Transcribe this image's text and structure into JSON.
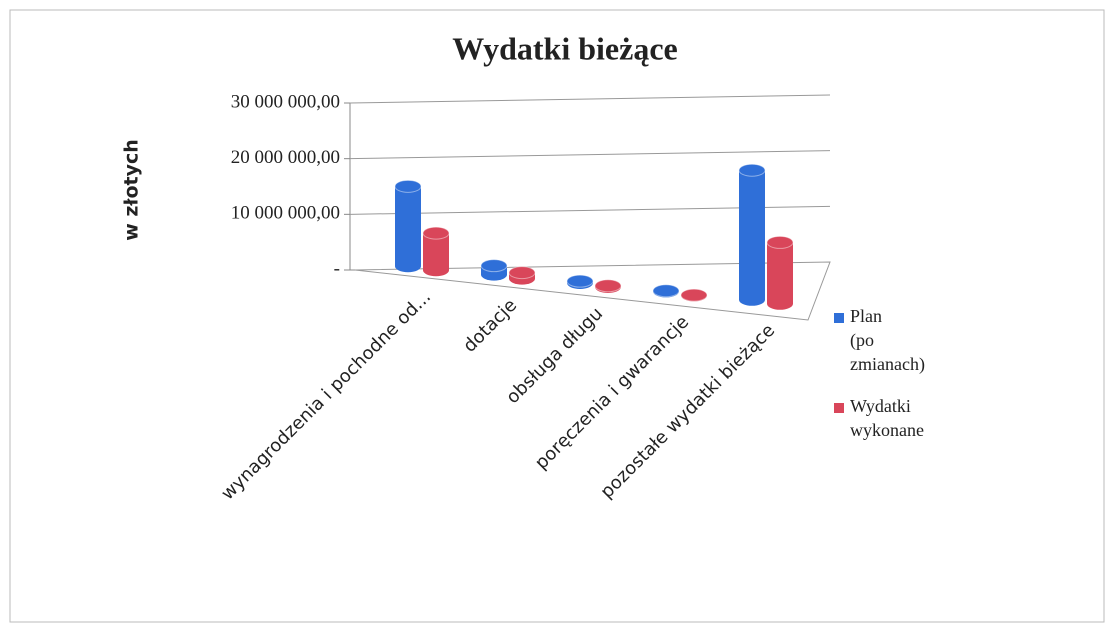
{
  "chart_data": {
    "type": "bar3d",
    "title": "Wydatki bieżące",
    "y_label": "w złotych",
    "categories": [
      "wynagrodzenia i pochodne od...",
      "dotacje",
      "obsługa długu",
      "poręczenia i gwarancje",
      "pozostałe wydatki bieżące"
    ],
    "series": [
      {
        "name": "Plan (po zmianach)",
        "color": "#2f6fd8",
        "values": [
          14000000,
          1500000,
          300000,
          100000,
          19000000
        ]
      },
      {
        "name": "Wydatki wykonane",
        "color": "#d9465a",
        "values": [
          6500000,
          1000000,
          200000,
          50000,
          9000000
        ]
      }
    ],
    "ylim": [
      0,
      30000000
    ],
    "yticks": [
      {
        "value": 0,
        "label": "-"
      },
      {
        "value": 10000000,
        "label": "10 000 000,00"
      },
      {
        "value": 20000000,
        "label": "20 000 000,00"
      },
      {
        "value": 30000000,
        "label": "30 000 000,00"
      }
    ],
    "grid": true,
    "legend": "right"
  }
}
